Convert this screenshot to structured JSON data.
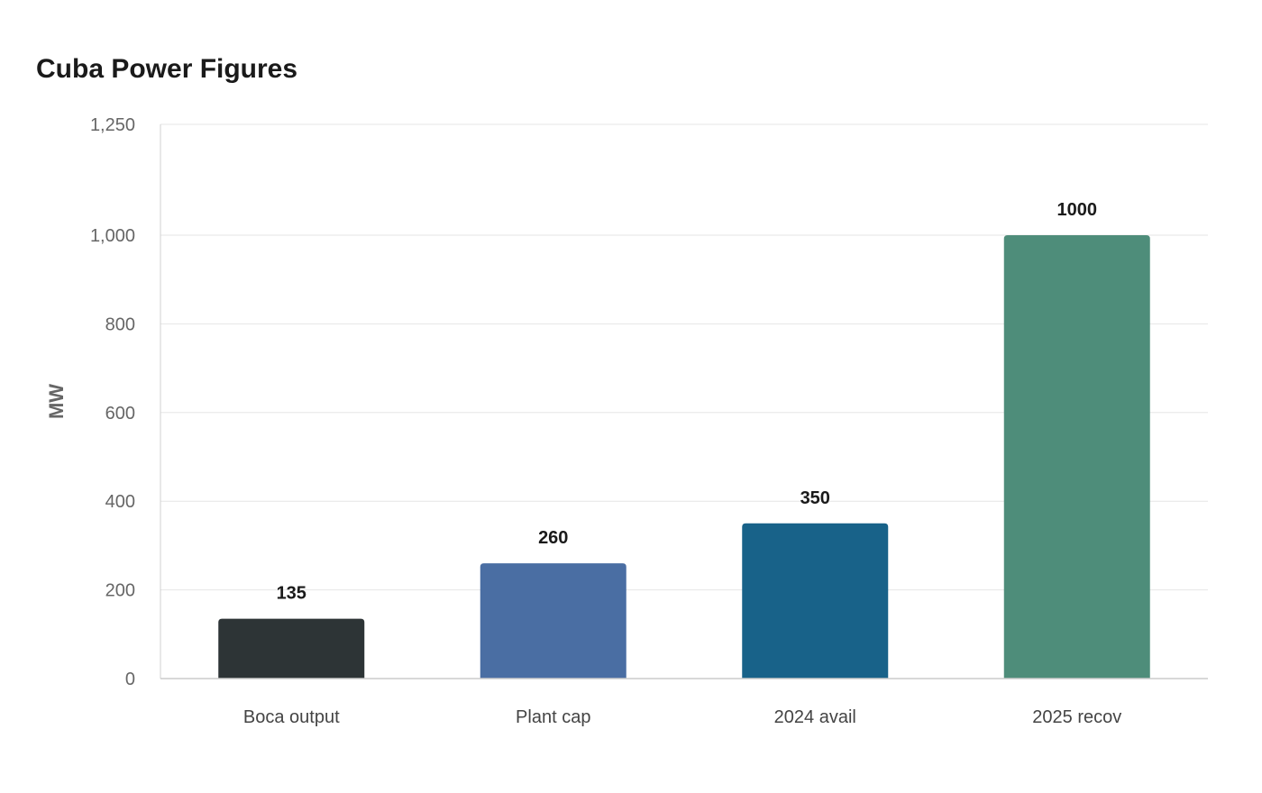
{
  "chart_data": {
    "type": "bar",
    "title": "Cuba Power Figures",
    "xlabel": "",
    "ylabel": "MW",
    "categories": [
      "Boca output",
      "Plant cap",
      "2024 avail",
      "2025 recov"
    ],
    "values": [
      135,
      260,
      350,
      1000
    ],
    "data_labels": [
      "135",
      "260",
      "350",
      "1000"
    ],
    "yticks": [
      0,
      200,
      400,
      600,
      800,
      1000,
      1250
    ],
    "ytick_labels": [
      "0",
      "200",
      "400",
      "600",
      "800",
      "1,000",
      "1,250"
    ],
    "ylim": [
      0,
      1250
    ],
    "grid": true,
    "legend": false,
    "colors": [
      "#2d3436",
      "#4a6ea3",
      "#186289",
      "#4e8d7a"
    ]
  }
}
